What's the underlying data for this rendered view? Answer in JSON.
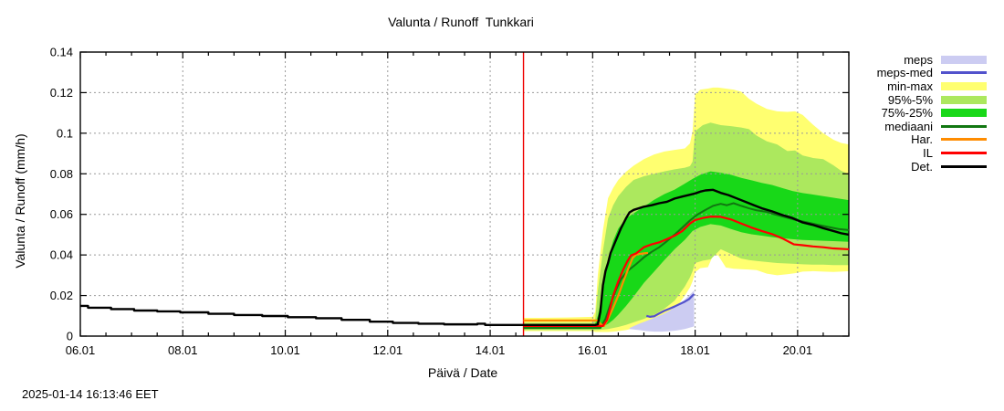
{
  "title": "Valunta / Runoff  Tunkkari",
  "timestamp": "2025-01-14 16:13:46 EET",
  "axes": {
    "x_label": "Päivä / Date",
    "y_label": "Valunta / Runoff (mm/h)",
    "x_ticks": [
      {
        "label": "06.01",
        "day": 6
      },
      {
        "label": "08.01",
        "day": 8
      },
      {
        "label": "10.01",
        "day": 10
      },
      {
        "label": "12.01",
        "day": 12
      },
      {
        "label": "14.01",
        "day": 14
      },
      {
        "label": "16.01",
        "day": 16
      },
      {
        "label": "18.01",
        "day": 18
      },
      {
        "label": "20.01",
        "day": 20
      }
    ],
    "y_ticks": [
      {
        "label": "0",
        "v": 0
      },
      {
        "label": "0.02",
        "v": 0.02
      },
      {
        "label": "0.04",
        "v": 0.04
      },
      {
        "label": "0.06",
        "v": 0.06
      },
      {
        "label": "0.08",
        "v": 0.08
      },
      {
        "label": "0.1",
        "v": 0.1
      },
      {
        "label": "0.12",
        "v": 0.12
      },
      {
        "label": "0.14",
        "v": 0.14
      }
    ],
    "grid_color": "#999999",
    "minor_tick_step_days": 0.5
  },
  "legend": {
    "items": [
      {
        "label": "meps",
        "type": "band",
        "color": "#ccccf2"
      },
      {
        "label": "meps-med",
        "type": "line",
        "color": "#5252cc"
      },
      {
        "label": "min-max",
        "type": "band",
        "color": "#ffff70"
      },
      {
        "label": "95%-5%",
        "type": "band",
        "color": "#ace85e"
      },
      {
        "label": "75%-25%",
        "type": "band",
        "color": "#18d818"
      },
      {
        "label": "mediaani",
        "type": "line",
        "color": "#117711"
      },
      {
        "label": "Har.",
        "type": "line",
        "color": "#ff8c00"
      },
      {
        "label": "IL",
        "type": "line",
        "color": "#ff0000"
      },
      {
        "label": "Det.",
        "type": "line",
        "color": "#000000"
      }
    ]
  },
  "chart_data": {
    "type": "line",
    "title": "Valunta / Runoff  Tunkkari",
    "xlabel": "Päivä / Date",
    "ylabel": "Valunta / Runoff (mm/h)",
    "x_range_days": [
      6,
      21
    ],
    "ylim": [
      0,
      0.14
    ],
    "grid": true,
    "legend_position": "outside-right-top",
    "current_time_line": {
      "day": 14.65,
      "color": "#ee0000"
    },
    "bands": [
      {
        "name": "min-max",
        "color": "#ffff70",
        "x": [
          14.65,
          15.0,
          15.5,
          16.0,
          16.05,
          16.1,
          16.2,
          16.3,
          16.4,
          16.5,
          16.65,
          16.8,
          17.0,
          17.2,
          17.4,
          17.6,
          17.8,
          17.9,
          17.95,
          18.0,
          18.1,
          18.25,
          18.35,
          18.45,
          18.6,
          18.75,
          18.9,
          19.05,
          19.2,
          19.4,
          19.6,
          19.8,
          19.95,
          20.1,
          20.3,
          20.5,
          20.7,
          20.85,
          21.0
        ],
        "hi": [
          0.009,
          0.009,
          0.0092,
          0.0095,
          0.012,
          0.03,
          0.052,
          0.068,
          0.073,
          0.077,
          0.081,
          0.084,
          0.0872,
          0.0895,
          0.091,
          0.0918,
          0.0925,
          0.095,
          0.101,
          0.119,
          0.1215,
          0.122,
          0.1225,
          0.1225,
          0.122,
          0.1215,
          0.1205,
          0.117,
          0.1145,
          0.112,
          0.1108,
          0.1105,
          0.1108,
          0.109,
          0.1042,
          0.1,
          0.0968,
          0.0952,
          0.0945
        ],
        "lo": [
          0.0025,
          0.0025,
          0.0025,
          0.0025,
          0.002,
          0.002,
          0.002,
          0.002,
          0.0022,
          0.0025,
          0.003,
          0.0038,
          0.005,
          0.0068,
          0.009,
          0.013,
          0.02,
          0.024,
          0.027,
          0.0315,
          0.0335,
          0.034,
          0.0398,
          0.0398,
          0.0338,
          0.0332,
          0.033,
          0.0328,
          0.0325,
          0.0308,
          0.03,
          0.0305,
          0.031,
          0.0318,
          0.032,
          0.0318,
          0.0316,
          0.0318,
          0.032
        ]
      },
      {
        "name": "95%-5%",
        "color": "#ace85e",
        "x": [
          14.65,
          15.0,
          15.5,
          16.0,
          16.05,
          16.1,
          16.2,
          16.3,
          16.4,
          16.5,
          16.65,
          16.8,
          17.0,
          17.2,
          17.4,
          17.6,
          17.8,
          17.9,
          17.95,
          18.0,
          18.15,
          18.3,
          18.5,
          18.7,
          18.9,
          19.05,
          19.2,
          19.4,
          19.6,
          19.8,
          19.95,
          20.1,
          20.3,
          20.5,
          20.7,
          20.85,
          21.0
        ],
        "hi": [
          0.0065,
          0.0065,
          0.0065,
          0.0065,
          0.008,
          0.022,
          0.042,
          0.058,
          0.0645,
          0.069,
          0.0735,
          0.077,
          0.0788,
          0.08,
          0.0812,
          0.0822,
          0.083,
          0.0838,
          0.086,
          0.101,
          0.104,
          0.1052,
          0.104,
          0.1035,
          0.1028,
          0.102,
          0.0988,
          0.096,
          0.0945,
          0.0912,
          0.0915,
          0.089,
          0.0878,
          0.0872,
          0.0842,
          0.0815,
          0.0798
        ],
        "lo": [
          0.003,
          0.003,
          0.003,
          0.003,
          0.003,
          0.003,
          0.0032,
          0.0035,
          0.004,
          0.0045,
          0.0055,
          0.0068,
          0.0085,
          0.0105,
          0.0135,
          0.0175,
          0.0245,
          0.029,
          0.032,
          0.036,
          0.0372,
          0.0378,
          0.0428,
          0.0405,
          0.0382,
          0.0375,
          0.037,
          0.0365,
          0.036,
          0.0358,
          0.0356,
          0.0354,
          0.0352,
          0.0352,
          0.035,
          0.035,
          0.035
        ]
      },
      {
        "name": "75%-25%",
        "color": "#18d818",
        "x": [
          14.65,
          15.0,
          15.5,
          16.0,
          16.05,
          16.1,
          16.2,
          16.3,
          16.4,
          16.5,
          16.65,
          16.8,
          17.0,
          17.2,
          17.4,
          17.6,
          17.8,
          17.95,
          18.1,
          18.3,
          18.5,
          18.7,
          18.9,
          19.1,
          19.3,
          19.5,
          19.7,
          19.9,
          20.1,
          20.3,
          20.5,
          20.7,
          21.0
        ],
        "hi": [
          0.0055,
          0.0055,
          0.0055,
          0.0055,
          0.006,
          0.01,
          0.022,
          0.038,
          0.047,
          0.053,
          0.058,
          0.0605,
          0.0638,
          0.0672,
          0.07,
          0.0722,
          0.0752,
          0.0775,
          0.0795,
          0.0812,
          0.0805,
          0.0795,
          0.078,
          0.0768,
          0.0755,
          0.0745,
          0.073,
          0.0715,
          0.0705,
          0.0698,
          0.069,
          0.0682,
          0.067
        ],
        "lo": [
          0.0038,
          0.0038,
          0.0038,
          0.0038,
          0.0038,
          0.004,
          0.0048,
          0.006,
          0.008,
          0.0105,
          0.0148,
          0.0195,
          0.0262,
          0.0318,
          0.0375,
          0.0428,
          0.0475,
          0.0518,
          0.0538,
          0.0552,
          0.0545,
          0.0528,
          0.0512,
          0.0502,
          0.0495,
          0.0488,
          0.0482,
          0.0478,
          0.0474,
          0.0472,
          0.047,
          0.0468,
          0.0465
        ]
      },
      {
        "name": "meps",
        "color": "#ccccf2",
        "x": [
          16.72,
          16.9,
          17.05,
          17.2,
          17.35,
          17.5,
          17.65,
          17.8,
          17.9,
          17.98
        ],
        "hi": [
          0.004,
          0.006,
          0.0075,
          0.009,
          0.0105,
          0.0125,
          0.015,
          0.018,
          0.0205,
          0.0225
        ],
        "lo": [
          0.0035,
          0.003,
          0.0025,
          0.0022,
          0.0022,
          0.0024,
          0.0028,
          0.0035,
          0.0042,
          0.0048
        ]
      }
    ],
    "series": [
      {
        "name": "mediaani",
        "color": "#117711",
        "width": 2,
        "x": [
          14.65,
          16.15,
          16.25,
          16.35,
          16.45,
          16.55,
          16.7,
          16.85,
          17.0,
          17.15,
          17.3,
          17.45,
          17.6,
          17.75,
          17.9,
          18.05,
          18.2,
          18.35,
          18.5,
          18.62,
          18.75,
          18.9,
          19.05,
          19.2,
          19.4,
          19.55,
          19.7,
          19.85,
          20.0,
          20.2,
          20.4,
          20.6,
          20.8,
          21.0
        ],
        "y": [
          0.004,
          0.004,
          0.0085,
          0.016,
          0.0225,
          0.028,
          0.0325,
          0.0355,
          0.0388,
          0.0415,
          0.0438,
          0.0468,
          0.05,
          0.0535,
          0.057,
          0.06,
          0.0622,
          0.0642,
          0.0652,
          0.0645,
          0.0655,
          0.0642,
          0.063,
          0.062,
          0.0612,
          0.06,
          0.059,
          0.058,
          0.057,
          0.056,
          0.0548,
          0.0538,
          0.0528,
          0.0523
        ]
      },
      {
        "name": "Har.",
        "color": "#ff8c00",
        "width": 2.2,
        "x": [
          14.65,
          16.1,
          16.15,
          16.22,
          16.3,
          16.4,
          16.5,
          16.6,
          16.7,
          16.78,
          16.85,
          17.0,
          17.08
        ],
        "y": [
          0.0077,
          0.0077,
          0.006,
          0.005,
          0.0085,
          0.014,
          0.02,
          0.027,
          0.0335,
          0.0385,
          0.0402,
          0.0408,
          0.041
        ]
      },
      {
        "name": "IL",
        "color": "#ff0000",
        "width": 2.2,
        "x": [
          14.65,
          16.2,
          16.28,
          16.33,
          16.4,
          16.5,
          16.6,
          16.68,
          16.75,
          16.85,
          17.0,
          17.15,
          17.3,
          17.45,
          17.6,
          17.75,
          17.9,
          18.0,
          18.15,
          18.3,
          18.5,
          18.7,
          18.9,
          19.1,
          19.3,
          19.5,
          19.7,
          19.93,
          20.1,
          20.3,
          20.5,
          20.7,
          21.0
        ],
        "y": [
          0.005,
          0.005,
          0.008,
          0.0125,
          0.02,
          0.027,
          0.033,
          0.037,
          0.0398,
          0.0408,
          0.0438,
          0.0452,
          0.0462,
          0.0478,
          0.0495,
          0.0518,
          0.0555,
          0.0572,
          0.0582,
          0.0589,
          0.0588,
          0.0575,
          0.0555,
          0.0535,
          0.0518,
          0.0503,
          0.0482,
          0.0452,
          0.0448,
          0.0442,
          0.0438,
          0.0432,
          0.0428
        ]
      },
      {
        "name": "meps-med",
        "color": "#5252cc",
        "width": 2.2,
        "x": [
          17.05,
          17.12,
          17.2,
          17.3,
          17.4,
          17.5,
          17.6,
          17.7,
          17.8,
          17.88,
          17.95,
          17.98
        ],
        "y": [
          0.01,
          0.0095,
          0.0098,
          0.0112,
          0.0125,
          0.0135,
          0.0146,
          0.0158,
          0.017,
          0.0182,
          0.02,
          0.0207
        ]
      },
      {
        "name": "Det.",
        "color": "#000000",
        "width": 2.4,
        "x": [
          6.0,
          6.15,
          6.15,
          6.6,
          6.6,
          7.05,
          7.05,
          7.5,
          7.5,
          7.95,
          7.95,
          8.5,
          8.5,
          9.0,
          9.0,
          9.55,
          9.55,
          10.05,
          10.05,
          10.6,
          10.6,
          11.1,
          11.1,
          11.65,
          11.65,
          12.1,
          12.1,
          12.6,
          12.6,
          13.1,
          13.1,
          13.75,
          13.75,
          13.9,
          13.9,
          14.65,
          16.05,
          16.1,
          16.15,
          16.2,
          16.25,
          16.3,
          16.35,
          16.45,
          16.55,
          16.65,
          16.72,
          16.8,
          16.9,
          17.0,
          17.15,
          17.3,
          17.45,
          17.6,
          17.75,
          17.9,
          18.0,
          18.1,
          18.2,
          18.35,
          18.5,
          18.65,
          18.8,
          19.0,
          19.15,
          19.3,
          19.5,
          19.7,
          19.9,
          20.1,
          20.3,
          20.5,
          20.7,
          20.85,
          21.0
        ],
        "y": [
          0.0149,
          0.0149,
          0.014,
          0.014,
          0.0133,
          0.0133,
          0.0126,
          0.0126,
          0.0122,
          0.0122,
          0.0117,
          0.0117,
          0.011,
          0.011,
          0.0104,
          0.0104,
          0.0099,
          0.0099,
          0.0093,
          0.0093,
          0.0088,
          0.0088,
          0.008,
          0.008,
          0.0071,
          0.0071,
          0.0065,
          0.0065,
          0.0061,
          0.0061,
          0.0058,
          0.0058,
          0.0061,
          0.0061,
          0.0055,
          0.0055,
          0.0055,
          0.0058,
          0.012,
          0.025,
          0.032,
          0.036,
          0.041,
          0.047,
          0.053,
          0.058,
          0.061,
          0.0622,
          0.063,
          0.0638,
          0.0645,
          0.0655,
          0.0662,
          0.0678,
          0.0688,
          0.0697,
          0.0703,
          0.0712,
          0.0718,
          0.0721,
          0.0706,
          0.0695,
          0.068,
          0.066,
          0.0645,
          0.063,
          0.0615,
          0.0597,
          0.0582,
          0.056,
          0.0548,
          0.0532,
          0.0518,
          0.0507,
          0.05
        ]
      }
    ]
  }
}
